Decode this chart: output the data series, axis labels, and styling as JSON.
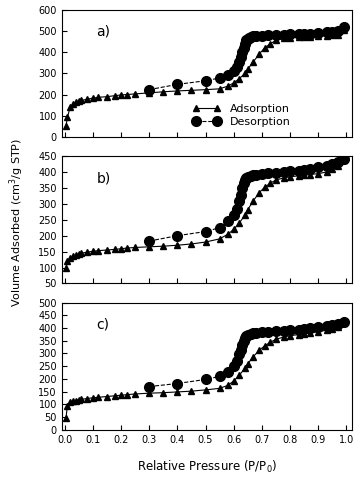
{
  "panel_a": {
    "label": "a)",
    "adsorption_x": [
      0.005,
      0.01,
      0.02,
      0.03,
      0.04,
      0.05,
      0.06,
      0.08,
      0.1,
      0.12,
      0.15,
      0.18,
      0.2,
      0.22,
      0.25,
      0.3,
      0.35,
      0.4,
      0.45,
      0.5,
      0.55,
      0.58,
      0.6,
      0.62,
      0.64,
      0.65,
      0.67,
      0.69,
      0.71,
      0.73,
      0.75,
      0.78,
      0.8,
      0.83,
      0.85,
      0.87,
      0.9,
      0.93,
      0.95,
      0.97,
      0.99
    ],
    "adsorption_y": [
      50,
      92,
      140,
      155,
      163,
      168,
      172,
      178,
      183,
      187,
      190,
      195,
      198,
      200,
      203,
      208,
      213,
      217,
      220,
      223,
      227,
      240,
      255,
      275,
      300,
      320,
      355,
      390,
      420,
      440,
      455,
      465,
      468,
      470,
      472,
      473,
      475,
      477,
      480,
      482,
      502
    ],
    "desorption_x": [
      0.3,
      0.4,
      0.5,
      0.55,
      0.58,
      0.6,
      0.61,
      0.62,
      0.625,
      0.63,
      0.635,
      0.64,
      0.645,
      0.65,
      0.655,
      0.66,
      0.67,
      0.68,
      0.7,
      0.72,
      0.75,
      0.78,
      0.8,
      0.83,
      0.85,
      0.87,
      0.9,
      0.93,
      0.95,
      0.97,
      0.99
    ],
    "desorption_y": [
      223,
      248,
      265,
      278,
      292,
      310,
      330,
      355,
      375,
      400,
      420,
      440,
      455,
      462,
      467,
      471,
      474,
      476,
      478,
      480,
      481,
      482,
      483,
      484,
      485,
      487,
      490,
      493,
      496,
      499,
      520
    ],
    "ylim": [
      0,
      600
    ],
    "yticks": [
      0,
      100,
      200,
      300,
      400,
      500,
      600
    ]
  },
  "panel_b": {
    "label": "b)",
    "adsorption_x": [
      0.005,
      0.01,
      0.02,
      0.03,
      0.04,
      0.05,
      0.06,
      0.08,
      0.1,
      0.12,
      0.15,
      0.18,
      0.2,
      0.22,
      0.25,
      0.3,
      0.35,
      0.4,
      0.45,
      0.5,
      0.55,
      0.58,
      0.6,
      0.62,
      0.64,
      0.65,
      0.67,
      0.69,
      0.71,
      0.73,
      0.75,
      0.78,
      0.8,
      0.83,
      0.85,
      0.87,
      0.9,
      0.93,
      0.95,
      0.97,
      0.99
    ],
    "adsorption_y": [
      98,
      120,
      130,
      135,
      138,
      142,
      145,
      148,
      151,
      153,
      155,
      157,
      159,
      161,
      163,
      165,
      167,
      170,
      174,
      180,
      190,
      205,
      220,
      240,
      265,
      282,
      310,
      335,
      352,
      365,
      375,
      382,
      385,
      388,
      390,
      392,
      395,
      400,
      410,
      420,
      438
    ],
    "desorption_x": [
      0.3,
      0.4,
      0.5,
      0.55,
      0.58,
      0.6,
      0.61,
      0.62,
      0.625,
      0.63,
      0.635,
      0.64,
      0.645,
      0.65,
      0.66,
      0.67,
      0.68,
      0.7,
      0.72,
      0.75,
      0.78,
      0.8,
      0.83,
      0.85,
      0.87,
      0.9,
      0.93,
      0.95,
      0.97,
      0.99
    ],
    "desorption_y": [
      183,
      200,
      213,
      225,
      245,
      265,
      285,
      308,
      328,
      350,
      365,
      375,
      381,
      385,
      388,
      390,
      392,
      394,
      396,
      398,
      400,
      402,
      404,
      407,
      410,
      415,
      420,
      425,
      432,
      440
    ],
    "ylim": [
      50,
      450
    ],
    "yticks": [
      50,
      100,
      150,
      200,
      250,
      300,
      350,
      400,
      450
    ]
  },
  "panel_c": {
    "label": "c)",
    "adsorption_x": [
      0.005,
      0.01,
      0.02,
      0.03,
      0.04,
      0.05,
      0.06,
      0.08,
      0.1,
      0.12,
      0.15,
      0.18,
      0.2,
      0.22,
      0.25,
      0.3,
      0.35,
      0.4,
      0.45,
      0.5,
      0.55,
      0.58,
      0.6,
      0.62,
      0.64,
      0.65,
      0.67,
      0.69,
      0.71,
      0.73,
      0.75,
      0.78,
      0.8,
      0.83,
      0.85,
      0.87,
      0.9,
      0.93,
      0.95,
      0.97,
      0.99
    ],
    "adsorption_y": [
      45,
      93,
      108,
      112,
      115,
      118,
      120,
      123,
      126,
      128,
      131,
      134,
      136,
      138,
      141,
      144,
      146,
      149,
      152,
      157,
      163,
      175,
      192,
      215,
      242,
      260,
      288,
      312,
      330,
      344,
      356,
      365,
      370,
      374,
      377,
      380,
      385,
      392,
      398,
      404,
      420
    ],
    "desorption_x": [
      0.3,
      0.4,
      0.5,
      0.55,
      0.58,
      0.6,
      0.61,
      0.62,
      0.625,
      0.63,
      0.635,
      0.64,
      0.645,
      0.65,
      0.66,
      0.67,
      0.68,
      0.7,
      0.72,
      0.75,
      0.78,
      0.8,
      0.83,
      0.85,
      0.87,
      0.9,
      0.93,
      0.95,
      0.97,
      0.99
    ],
    "desorption_y": [
      170,
      182,
      198,
      210,
      228,
      252,
      272,
      296,
      315,
      335,
      350,
      362,
      370,
      374,
      377,
      380,
      382,
      384,
      386,
      388,
      390,
      392,
      394,
      397,
      400,
      404,
      408,
      412,
      416,
      422
    ],
    "ylim": [
      0,
      500
    ],
    "yticks": [
      0,
      50,
      100,
      150,
      200,
      250,
      300,
      350,
      400,
      450,
      500
    ]
  },
  "xlabel": "Relative Pressure (P/P$_0$)",
  "ylabel": "Volume Adsorbed (cm$^3$/g STP)",
  "legend_adsorption": "Adsorption",
  "legend_desorption": "Desorption",
  "adsorption_color": "black",
  "desorption_color": "black",
  "marker_adsorption": "^",
  "marker_desorption": "o",
  "line_adsorption": "-",
  "line_desorption": "--",
  "markersize_ads": 4,
  "markersize_des": 7,
  "xticks": [
    0.0,
    0.1,
    0.2,
    0.3,
    0.4,
    0.5,
    0.6,
    0.7,
    0.8,
    0.9,
    1.0
  ],
  "xlim": [
    -0.01,
    1.02
  ]
}
